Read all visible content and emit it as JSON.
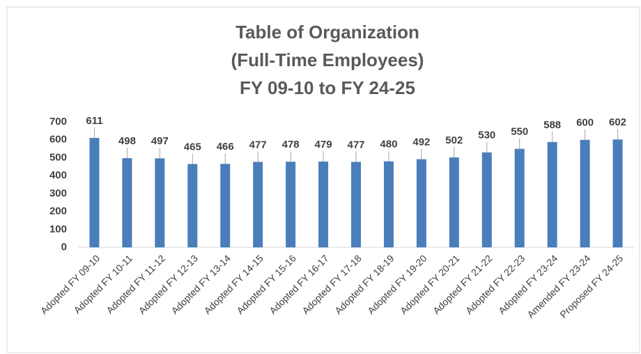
{
  "chart_data": {
    "type": "bar",
    "title": [
      "Table of Organization",
      "(Full-Time Employees)",
      "FY 09-10 to FY 24-25"
    ],
    "categories": [
      "Adopted FY 09-10",
      "Adopted FY 10-11",
      "Adopted FY 11-12",
      "Adopted FY 12-13",
      "Adopted FY 13-14",
      "Adopted FY 14-15",
      "Adopted FY 15-16",
      "Adopted FY 16-17",
      "Adopted FY 17-18",
      "Adopted FY 18-19",
      "Adopted FY 19-20",
      "Adopted FY 20-21",
      "Adopted FY 21-22",
      "Adopted FY 22-23",
      "Adopted FY 23-24",
      "Amended FY 23-24",
      "Proposed FY 24-25"
    ],
    "values": [
      611,
      498,
      497,
      465,
      466,
      477,
      478,
      479,
      477,
      480,
      492,
      502,
      530,
      550,
      588,
      600,
      602
    ],
    "color": "#4a7ebb",
    "ylim": [
      0,
      700
    ],
    "yticks": [
      0,
      100,
      200,
      300,
      400,
      500,
      600,
      700
    ],
    "grid": false
  }
}
